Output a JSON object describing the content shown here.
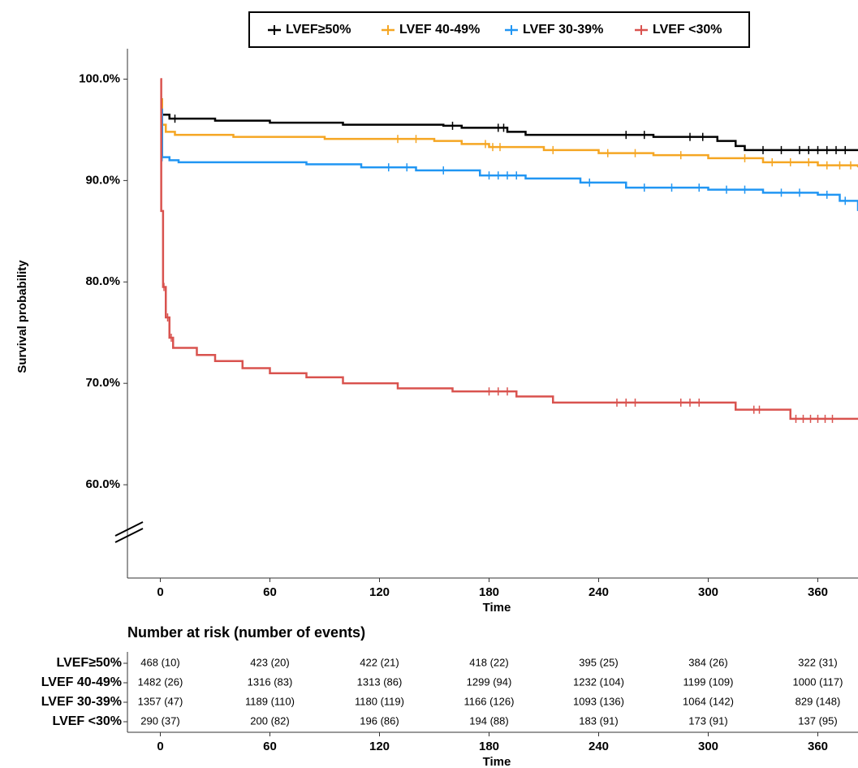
{
  "chart_data": {
    "type": "line",
    "y_label": "Survival probability",
    "x_label": "Time",
    "xlim": [
      -18,
      382
    ],
    "xticks": [
      0,
      60,
      120,
      180,
      240,
      300,
      360
    ],
    "ylim": [
      50.8,
      103
    ],
    "yticks": [
      {
        "value": 60,
        "label": "60.0%"
      },
      {
        "value": 70,
        "label": "70.0%"
      },
      {
        "value": 80,
        "label": "80.0%"
      },
      {
        "value": 90,
        "label": "90.0%"
      },
      {
        "value": 100,
        "label": "100.0%"
      }
    ],
    "series": [
      {
        "name": "LVEF≥50%",
        "color": "#000000",
        "x": [
          0,
          1,
          5,
          30,
          60,
          100,
          155,
          165,
          190,
          200,
          270,
          305,
          315,
          320,
          382
        ],
        "values": [
          98,
          96.5,
          96.1,
          95.9,
          95.7,
          95.5,
          95.4,
          95.2,
          94.8,
          94.5,
          94.3,
          93.9,
          93.4,
          93.0,
          93.0
        ],
        "censor_x": [
          1,
          8,
          160,
          185,
          188,
          255,
          265,
          290,
          297,
          330,
          340,
          350,
          355,
          360,
          365,
          370,
          375
        ]
      },
      {
        "name": "LVEF 40-49%",
        "color": "#f5a623",
        "x": [
          0,
          1,
          3,
          8,
          40,
          90,
          150,
          165,
          180,
          210,
          240,
          270,
          300,
          330,
          360,
          382
        ],
        "values": [
          98,
          95.5,
          94.8,
          94.5,
          94.3,
          94.1,
          93.9,
          93.6,
          93.3,
          93.0,
          92.7,
          92.5,
          92.2,
          91.8,
          91.5,
          91.3
        ],
        "censor_x": [
          1,
          130,
          140,
          178,
          182,
          186,
          215,
          245,
          260,
          285,
          320,
          335,
          345,
          355,
          365,
          372,
          378
        ]
      },
      {
        "name": "LVEF 30-39%",
        "color": "#2196f3",
        "x": [
          0,
          1,
          5,
          10,
          80,
          110,
          140,
          175,
          200,
          230,
          255,
          300,
          330,
          360,
          372,
          382
        ],
        "values": [
          97,
          92.3,
          92.0,
          91.8,
          91.6,
          91.3,
          91.0,
          90.5,
          90.2,
          89.8,
          89.3,
          89.1,
          88.8,
          88.6,
          88.0,
          87.0
        ],
        "censor_x": [
          1,
          125,
          135,
          155,
          180,
          185,
          190,
          195,
          235,
          265,
          280,
          295,
          310,
          320,
          340,
          350,
          365,
          375
        ]
      },
      {
        "name": "LVEF <30%",
        "color": "#d9534f",
        "x": [
          0,
          0.5,
          1.5,
          3,
          5,
          7,
          20,
          30,
          45,
          60,
          80,
          100,
          130,
          160,
          195,
          215,
          315,
          345,
          382
        ],
        "values": [
          100,
          87,
          79.5,
          76.5,
          74.5,
          73.5,
          72.8,
          72.2,
          71.5,
          71.0,
          70.6,
          70.0,
          69.5,
          69.2,
          68.7,
          68.1,
          67.4,
          66.5,
          66.5
        ],
        "censor_x": [
          2,
          4,
          6,
          180,
          185,
          190,
          250,
          255,
          260,
          285,
          290,
          295,
          325,
          328,
          348,
          352,
          356,
          360,
          364,
          368
        ]
      }
    ],
    "risk_table": {
      "title": "Number at risk (number of events)",
      "rows": [
        [
          "468 (10)",
          "423 (20)",
          "422 (21)",
          "418 (22)",
          "395 (25)",
          "384 (26)",
          "322 (31)"
        ],
        [
          "1482 (26)",
          "1316 (83)",
          "1313 (86)",
          "1299 (94)",
          "1232 (104)",
          "1199 (109)",
          "1000 (117)"
        ],
        [
          "1357 (47)",
          "1189 (110)",
          "1180 (119)",
          "1166 (126)",
          "1093 (136)",
          "1064 (142)",
          "829 (148)"
        ],
        [
          "290 (37)",
          "200 (82)",
          "196 (86)",
          "194 (88)",
          "183 (91)",
          "173 (91)",
          "137 (95)"
        ]
      ]
    }
  }
}
